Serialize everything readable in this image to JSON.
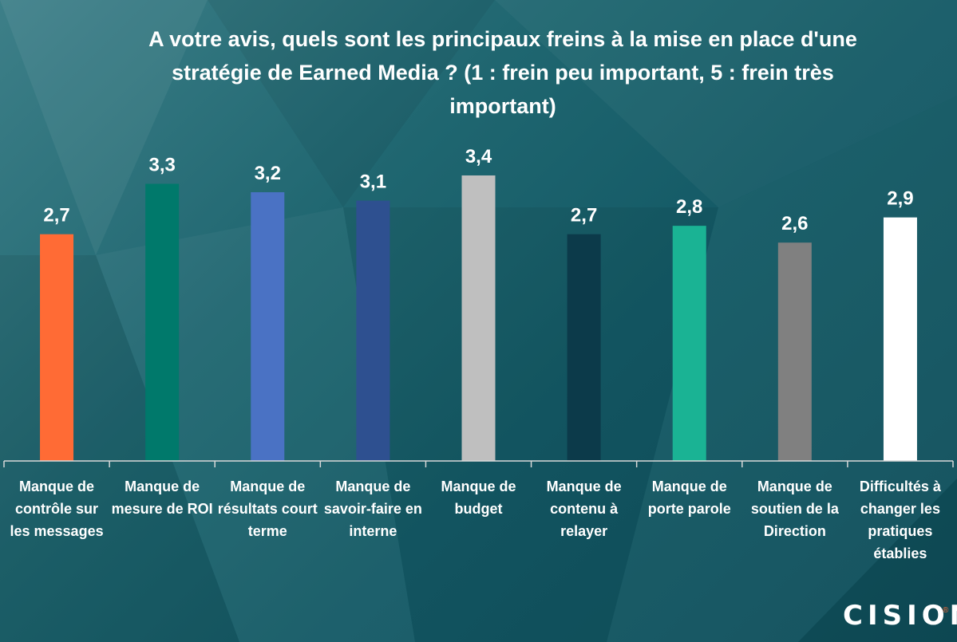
{
  "chart_data": {
    "type": "bar",
    "title": "A votre avis, quels sont les principaux freins à la mise en place d'une stratégie de Earned Media ? (1 : frein peu important, 5 : frein très important)",
    "categories": [
      "Manque de contrôle sur les messages",
      "Manque de mesure de ROI",
      "Manque de résultats court terme",
      "Manque de savoir-faire en interne",
      "Manque de budget",
      "Manque de contenu à relayer",
      "Manque de porte parole",
      "Manque de soutien de la Direction",
      "Difficultés à changer les pratiques établies"
    ],
    "values": [
      2.7,
      3.3,
      3.2,
      3.1,
      3.4,
      2.7,
      2.8,
      2.6,
      2.9
    ],
    "value_labels": [
      "2,7",
      "3,3",
      "3,2",
      "3,1",
      "3,4",
      "2,7",
      "2,8",
      "2,6",
      "2,9"
    ],
    "colors": [
      "#ff6b35",
      "#00796b",
      "#4a72c4",
      "#2e5090",
      "#bfbfbf",
      "#0c3a4a",
      "#1ab394",
      "#808080",
      "#ffffff"
    ],
    "ylim": [
      0,
      6
    ],
    "grid": false,
    "legend": "none",
    "xlabel": "",
    "ylabel": ""
  },
  "brand": {
    "logo_text": "CISION",
    "registered_mark": "®"
  }
}
